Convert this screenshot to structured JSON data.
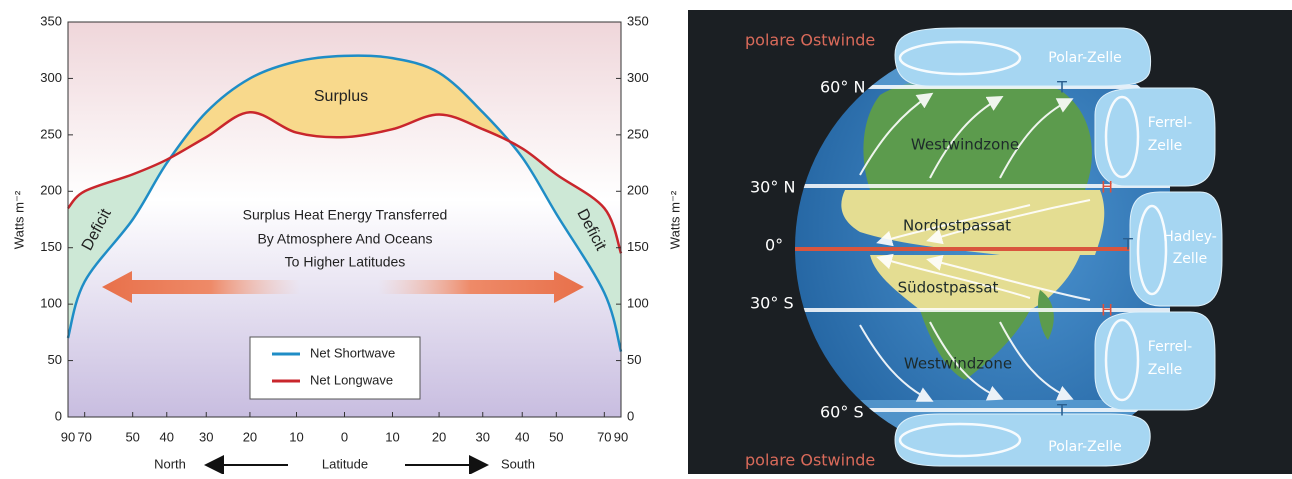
{
  "chart_data": {
    "type": "line",
    "y_label": "Watts m⁻²",
    "x_label": "Latitude",
    "x_left_label": "North",
    "x_right_label": "South",
    "x": [
      90,
      70,
      50,
      40,
      30,
      20,
      10,
      0,
      -10,
      -20,
      -30,
      -40,
      -50,
      -70,
      -90
    ],
    "xscale": "sine",
    "xlim": [
      90,
      -90
    ],
    "xticks": [
      90,
      70,
      50,
      40,
      30,
      20,
      10,
      0,
      {
        "value": -10,
        "label": "10"
      },
      {
        "value": -20,
        "label": "20"
      },
      {
        "value": -30,
        "label": "30"
      },
      {
        "value": -40,
        "label": "40"
      },
      {
        "value": -50,
        "label": "50"
      },
      {
        "value": -70,
        "label": "70"
      },
      {
        "value": -90,
        "label": "90"
      }
    ],
    "ylim": [
      0,
      350
    ],
    "yticks": [
      0,
      50,
      100,
      150,
      200,
      250,
      300,
      350
    ],
    "series": [
      {
        "name": "Net Shortwave",
        "color": "#1f8dc6",
        "values": [
          70,
          120,
          175,
          225,
          270,
          300,
          315,
          320,
          318,
          305,
          270,
          230,
          180,
          110,
          58
        ]
      },
      {
        "name": "Net Longwave",
        "color": "#c9262c",
        "values": [
          185,
          200,
          215,
          228,
          248,
          270,
          252,
          248,
          255,
          268,
          255,
          238,
          215,
          185,
          145
        ]
      }
    ],
    "surplus_label": "Surplus",
    "deficit_label": "Deficit",
    "annotation": [
      "Surplus Heat Energy Transferred",
      "By Atmosphere And Oceans",
      "To Higher Latitudes"
    ]
  },
  "diagram": {
    "wind_labels": [
      "polare Ostwinde",
      "polare Ostwinde"
    ],
    "latitudes": [
      "60° N",
      "30° N",
      "0°",
      "30° S",
      "60° S"
    ],
    "zones": [
      "Westwindzone",
      "Nordostpassat",
      "Südostpassat",
      "Westwindzone"
    ],
    "cells": [
      {
        "lines": [
          "Polar-Zelle"
        ]
      },
      {
        "lines": [
          "Ferrel-",
          "Zelle"
        ]
      },
      {
        "lines": [
          "Hadley-",
          "Zelle"
        ]
      },
      {
        "lines": [
          "Ferrel-",
          "Zelle"
        ]
      },
      {
        "lines": [
          "Polar-Zelle"
        ]
      }
    ],
    "pressure": [
      "T",
      "H",
      "T",
      "H",
      "T"
    ]
  }
}
